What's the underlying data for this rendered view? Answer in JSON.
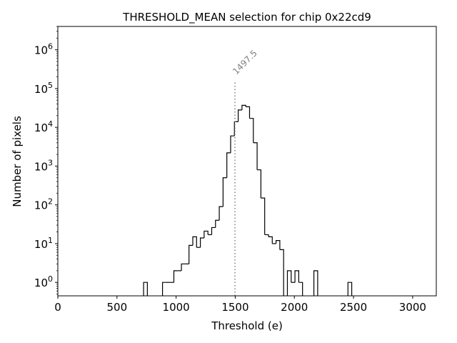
{
  "chart_data": {
    "type": "histogram",
    "title": "THRESHOLD_MEAN selection for chip 0x22cd9",
    "xlabel": "Threshold (e)",
    "ylabel": "Number of pixels",
    "xlim": [
      0,
      3200
    ],
    "ylim": [
      0.45,
      4000000
    ],
    "yscale": "log",
    "xticks": [
      0,
      500,
      1000,
      1500,
      2000,
      2500,
      3000
    ],
    "xtick_labels": [
      "0",
      "500",
      "1000",
      "1500",
      "2000",
      "2500",
      "3000"
    ],
    "ytick_labels": [
      {
        "base": "10",
        "exp": "0",
        "value": 1
      },
      {
        "base": "10",
        "exp": "1",
        "value": 10
      },
      {
        "base": "10",
        "exp": "2",
        "value": 100
      },
      {
        "base": "10",
        "exp": "3",
        "value": 1000
      },
      {
        "base": "10",
        "exp": "4",
        "value": 10000
      },
      {
        "base": "10",
        "exp": "5",
        "value": 100000
      },
      {
        "base": "10",
        "exp": "6",
        "value": 1000000
      }
    ],
    "bin_width": 32,
    "bin_edges_start": [
      725,
      757,
      789,
      821,
      853,
      885,
      917,
      949,
      981,
      1013,
      1045,
      1077,
      1109,
      1141,
      1173,
      1205,
      1237,
      1269,
      1301,
      1333,
      1365,
      1397,
      1429,
      1461,
      1493,
      1525,
      1557,
      1589,
      1621,
      1653,
      1685,
      1717,
      1749,
      1781,
      1813,
      1845,
      1877,
      1909,
      1941,
      1973,
      2005,
      2037,
      2069,
      2101,
      2133,
      2165,
      2197,
      2229,
      2261,
      2293,
      2325,
      2357,
      2389,
      2421,
      2453
    ],
    "counts": [
      1,
      0,
      0,
      0,
      0,
      1,
      1,
      1,
      2,
      2,
      3,
      3,
      9,
      15,
      8,
      14,
      21,
      17,
      26,
      40,
      90,
      500,
      2200,
      6000,
      14000,
      28000,
      37000,
      34000,
      17000,
      4000,
      800,
      150,
      17,
      15,
      10,
      12,
      7,
      0,
      2,
      1,
      2,
      1,
      0,
      0,
      0,
      2,
      0,
      0,
      0,
      0,
      0,
      0,
      0,
      0,
      1
    ],
    "vline": {
      "x": 1497.5,
      "label": "1497.5",
      "ymax": 160000,
      "color": "#808080",
      "style": "dotted"
    }
  }
}
